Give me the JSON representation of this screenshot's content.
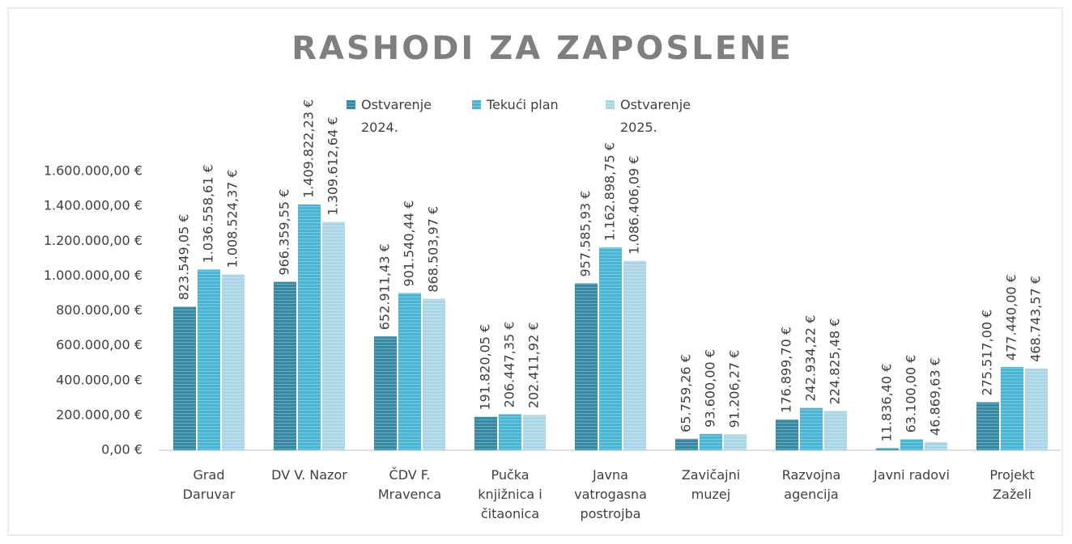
{
  "chart_data": {
    "type": "bar",
    "title": "RASHODI ZA ZAPOSLENE",
    "categories": [
      "Grad Daruvar",
      "DV V. Nazor",
      "ČDV F. Mravenca",
      "Pučka knjižnica i čitaonica",
      "Javna vatrogasna postrojba",
      "Zavičajni muzej",
      "Razvojna agencija",
      "Javni radovi",
      "Projekt Zaželi"
    ],
    "series": [
      {
        "name": "Ostvarenje 2024.",
        "color": "#3a87a0",
        "values": [
          823549.05,
          966359.55,
          652911.43,
          191820.05,
          957585.93,
          65759.26,
          176899.7,
          11836.4,
          275517.0
        ],
        "value_labels": [
          "823.549,05 €",
          "966.359,55 €",
          "652.911,43 €",
          "191.820,05 €",
          "957.585,93 €",
          "65.759,26 €",
          "176.899,70 €",
          "11.836,40 €",
          "275.517,00 €"
        ]
      },
      {
        "name": "Tekući plan",
        "color": "#4fb3cf",
        "values": [
          1036558.61,
          1409822.23,
          901540.44,
          206447.35,
          1162898.75,
          93600.0,
          242934.22,
          63100.0,
          477440.0
        ],
        "value_labels": [
          "1.036.558,61 €",
          "1.409.822,23 €",
          "901.540,44 €",
          "206.447,35 €",
          "1.162.898,75 €",
          "93.600,00 €",
          "242.934,22 €",
          "63.100,00 €",
          "477.440,00 €"
        ]
      },
      {
        "name": "Ostvarenje 2025.",
        "color": "#abd5e3",
        "values": [
          1008524.37,
          1309612.64,
          868503.97,
          202411.92,
          1086406.09,
          91206.27,
          224825.48,
          46869.63,
          468743.57
        ],
        "value_labels": [
          "1.008.524,37 €",
          "1.309.612,64 €",
          "868.503,97 €",
          "202.411,92 €",
          "1.086.406,09 €",
          "91.206,27 €",
          "224.825,48 €",
          "46.869,63 €",
          "468.743,57 €"
        ]
      }
    ],
    "ylim": [
      0,
      1600000
    ],
    "yticks": [
      {
        "value": 0,
        "label": "0,00 €"
      },
      {
        "value": 200000,
        "label": "200.000,00 €"
      },
      {
        "value": 400000,
        "label": "400.000,00 €"
      },
      {
        "value": 600000,
        "label": "600.000,00 €"
      },
      {
        "value": 800000,
        "label": "800.000,00 €"
      },
      {
        "value": 1000000,
        "label": "1.000.000,00 €"
      },
      {
        "value": 1200000,
        "label": "1.200.000,00 €"
      },
      {
        "value": 1400000,
        "label": "1.400.000,00 €"
      },
      {
        "value": 1600000,
        "label": "1.600.000,00 €"
      }
    ],
    "grid": false,
    "legend": "top"
  }
}
